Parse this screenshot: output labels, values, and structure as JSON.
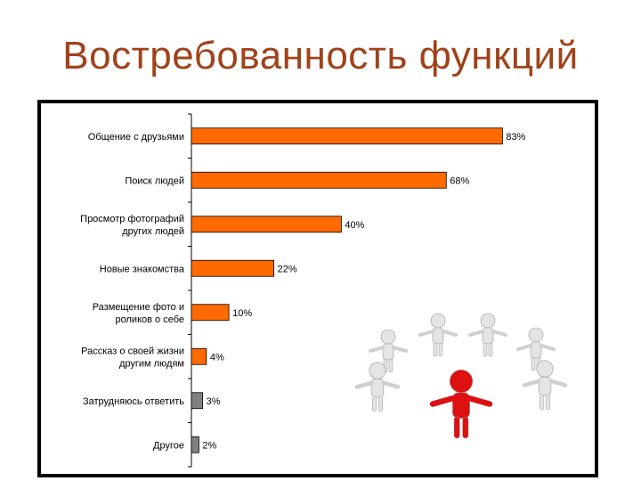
{
  "slide": {
    "title": "Востребованность функций"
  },
  "chart_data": {
    "type": "bar",
    "orientation": "horizontal",
    "categories": [
      "Общение с друзьями",
      "Поиск людей",
      "Просмотр фотографий\nдругих людей",
      "Новые знакомства",
      "Размещение фото и\nроликов о себе",
      "Рассказ о своей жизни\nдругим людям",
      "Затрудняюсь ответить",
      "Другое"
    ],
    "values": [
      83,
      68,
      40,
      22,
      10,
      4,
      3,
      2
    ],
    "value_labels": [
      "83%",
      "68%",
      "40%",
      "22%",
      "10%",
      "4%",
      "3%",
      "2%"
    ],
    "bar_colors": [
      "#ff6a00",
      "#ff6a00",
      "#ff6a00",
      "#ff6a00",
      "#ff6a00",
      "#ff6a00",
      "#808080",
      "#808080"
    ],
    "xlim": [
      0,
      100
    ],
    "grid": false,
    "legend": "none"
  },
  "illustration": {
    "icon": "people-circle-leader-icon",
    "colors": {
      "leader": "#dd1111",
      "figures": "#e4e4e4"
    }
  },
  "colors": {
    "title": "#a0421a",
    "accent_bar": "#ff6a00",
    "neutral_bar": "#808080",
    "frame": "#000000"
  }
}
